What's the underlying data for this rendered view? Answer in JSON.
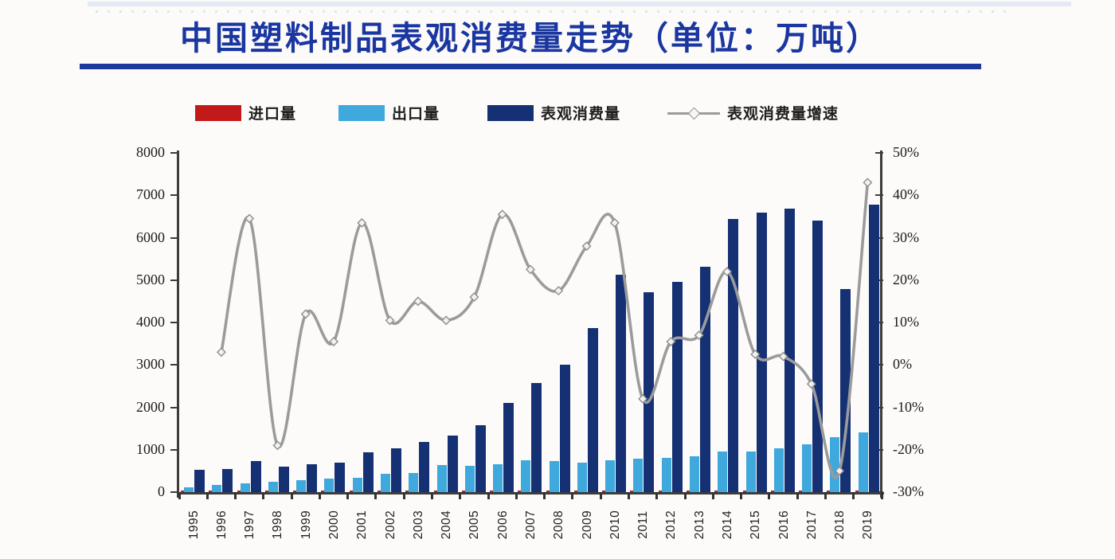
{
  "title": {
    "text": "中国塑料制品表观消费量走势（单位：万吨）",
    "color": "#1a36a0"
  },
  "legend": {
    "items": [
      {
        "label": "进口量",
        "marker": "bar",
        "color": "#c21a1a"
      },
      {
        "label": "出口量",
        "marker": "bar",
        "color": "#3fa8dc"
      },
      {
        "label": "表观消费量",
        "marker": "bar",
        "color": "#163173"
      },
      {
        "label": "表观消费量增速",
        "marker": "line",
        "color": "#9b9b9b"
      }
    ]
  },
  "chart_data": {
    "type": "bar+line combo",
    "title": "中国塑料制品表观消费量走势（单位：万吨）",
    "unit_left": "万吨",
    "unit_right": "%",
    "grid": "off",
    "legend_position": "top",
    "categories": [
      1995,
      1996,
      1997,
      1998,
      1999,
      2000,
      2001,
      2002,
      2003,
      2004,
      2005,
      2006,
      2007,
      2008,
      2009,
      2010,
      2011,
      2012,
      2013,
      2014,
      2015,
      2016,
      2017,
      2018,
      2019
    ],
    "left_axis": {
      "min": 0,
      "max": 8000,
      "step": 1000,
      "ticks": [
        "8000",
        "7000",
        "6000",
        "5000",
        "4000",
        "3000",
        "2000",
        "1000",
        "0"
      ]
    },
    "right_axis": {
      "min": -30,
      "max": 50,
      "step": 10,
      "ticks": [
        "50%",
        "40%",
        "30%",
        "20%",
        "10%",
        "0%",
        "-10%",
        "-20%",
        "-30%"
      ]
    },
    "series": [
      {
        "name": "进口量",
        "key": "import",
        "type": "bar",
        "axis": "left",
        "color": "#c21a1a",
        "note": "bars are below pixel resolution in the source image (near zero height)",
        "values": [
          30,
          30,
          30,
          30,
          30,
          30,
          30,
          30,
          30,
          30,
          30,
          30,
          30,
          30,
          30,
          30,
          30,
          30,
          30,
          30,
          30,
          30,
          30,
          30,
          30
        ]
      },
      {
        "name": "出口量",
        "key": "export",
        "type": "bar",
        "axis": "left",
        "color": "#3fa8dc",
        "values": [
          110,
          165,
          200,
          240,
          280,
          320,
          330,
          430,
          460,
          640,
          620,
          660,
          750,
          730,
          695,
          750,
          790,
          810,
          850,
          950,
          960,
          1030,
          1130,
          1300,
          1400
        ]
      },
      {
        "name": "表观消费量",
        "key": "consumption",
        "type": "bar",
        "axis": "left",
        "color": "#163173",
        "values": [
          530,
          545,
          735,
          595,
          665,
          700,
          940,
          1040,
          1190,
          1330,
          1580,
          2100,
          2580,
          3000,
          3870,
          5120,
          4720,
          4960,
          5310,
          6450,
          6600,
          6690,
          6410,
          4780,
          6770
        ]
      },
      {
        "name": "表观消费量增速",
        "key": "growth",
        "type": "line",
        "axis": "right",
        "color": "#9b9b9b",
        "values": [
          null,
          3,
          34.5,
          -19,
          12,
          5.5,
          33.5,
          10.5,
          15,
          10.5,
          16,
          35.5,
          22.5,
          17.5,
          28,
          33.5,
          -8,
          5.5,
          7,
          22,
          2.5,
          2,
          -4.5,
          -25,
          43
        ]
      }
    ]
  }
}
